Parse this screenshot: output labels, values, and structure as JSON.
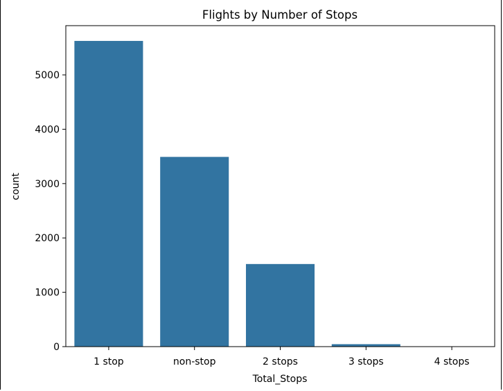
{
  "chart_data": {
    "type": "bar",
    "title": "Flights by Number of Stops",
    "xlabel": "Total_Stops",
    "ylabel": "count",
    "categories": [
      "1 stop",
      "non-stop",
      "2 stops",
      "3 stops",
      "4 stops"
    ],
    "values": [
      5625,
      3491,
      1520,
      45,
      1
    ],
    "ylim": [
      0,
      5906
    ],
    "yticks": [
      0,
      1000,
      2000,
      3000,
      4000,
      5000
    ],
    "bar_color": "#3274a1",
    "grid": false,
    "legend": "none"
  }
}
